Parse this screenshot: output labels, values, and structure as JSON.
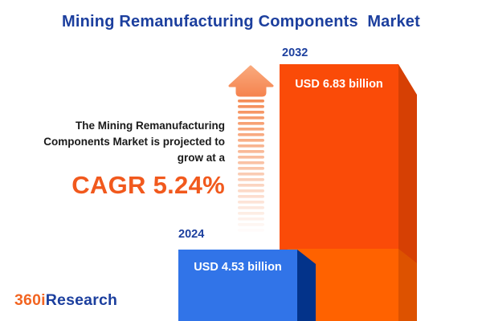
{
  "title": "Mining Remanufacturing Components  Market",
  "projection": {
    "lines": [
      "The Mining Remanufacturing",
      "Components Market is projected to",
      "grow at a"
    ],
    "cagr_label": "CAGR 5.24%"
  },
  "bars": {
    "label_2032": "2032",
    "value_2032": "USD 6.83 billion",
    "label_2024": "2024",
    "value_2024": "USD 4.53 billion"
  },
  "logo": {
    "part1": "360i",
    "part2": "Research"
  },
  "chart_data": {
    "type": "bar",
    "title": "Mining Remanufacturing Components Market",
    "categories": [
      "2024",
      "2032"
    ],
    "values": [
      4.53,
      6.83
    ],
    "unit": "USD billion",
    "value_labels": [
      "USD 4.53 billion",
      "USD 6.83 billion"
    ],
    "cagr_percent": 5.24,
    "annotation": "The Mining Remanufacturing Components Market is projected to grow at a CAGR 5.24%",
    "orientation": "vertical",
    "legend": "none",
    "gridlines": false,
    "style": "3d-infographic"
  },
  "colors": {
    "title_blue": "#1C3F9E",
    "text_black": "#1A1A1A",
    "cagr_orange": "#F1591D",
    "bar_2024_front": "#3174E8",
    "bar_2024_side": "#03338A",
    "bar_2032_front": "#FA4B08",
    "bar_2032_side": "#D64004",
    "bar_2032_base_front": "#FF6200",
    "bar_2032_base_side": "#DD5200",
    "arrow_orange": "#F58E58",
    "arrow_head_top": "#F9A97C",
    "arrow_head_bottom": "#F58450",
    "logo_orange": "#F26522",
    "logo_blue": "#1C3F9E",
    "value_text": "#FFFFFF"
  },
  "arrow": {
    "stripe_count": 24
  }
}
